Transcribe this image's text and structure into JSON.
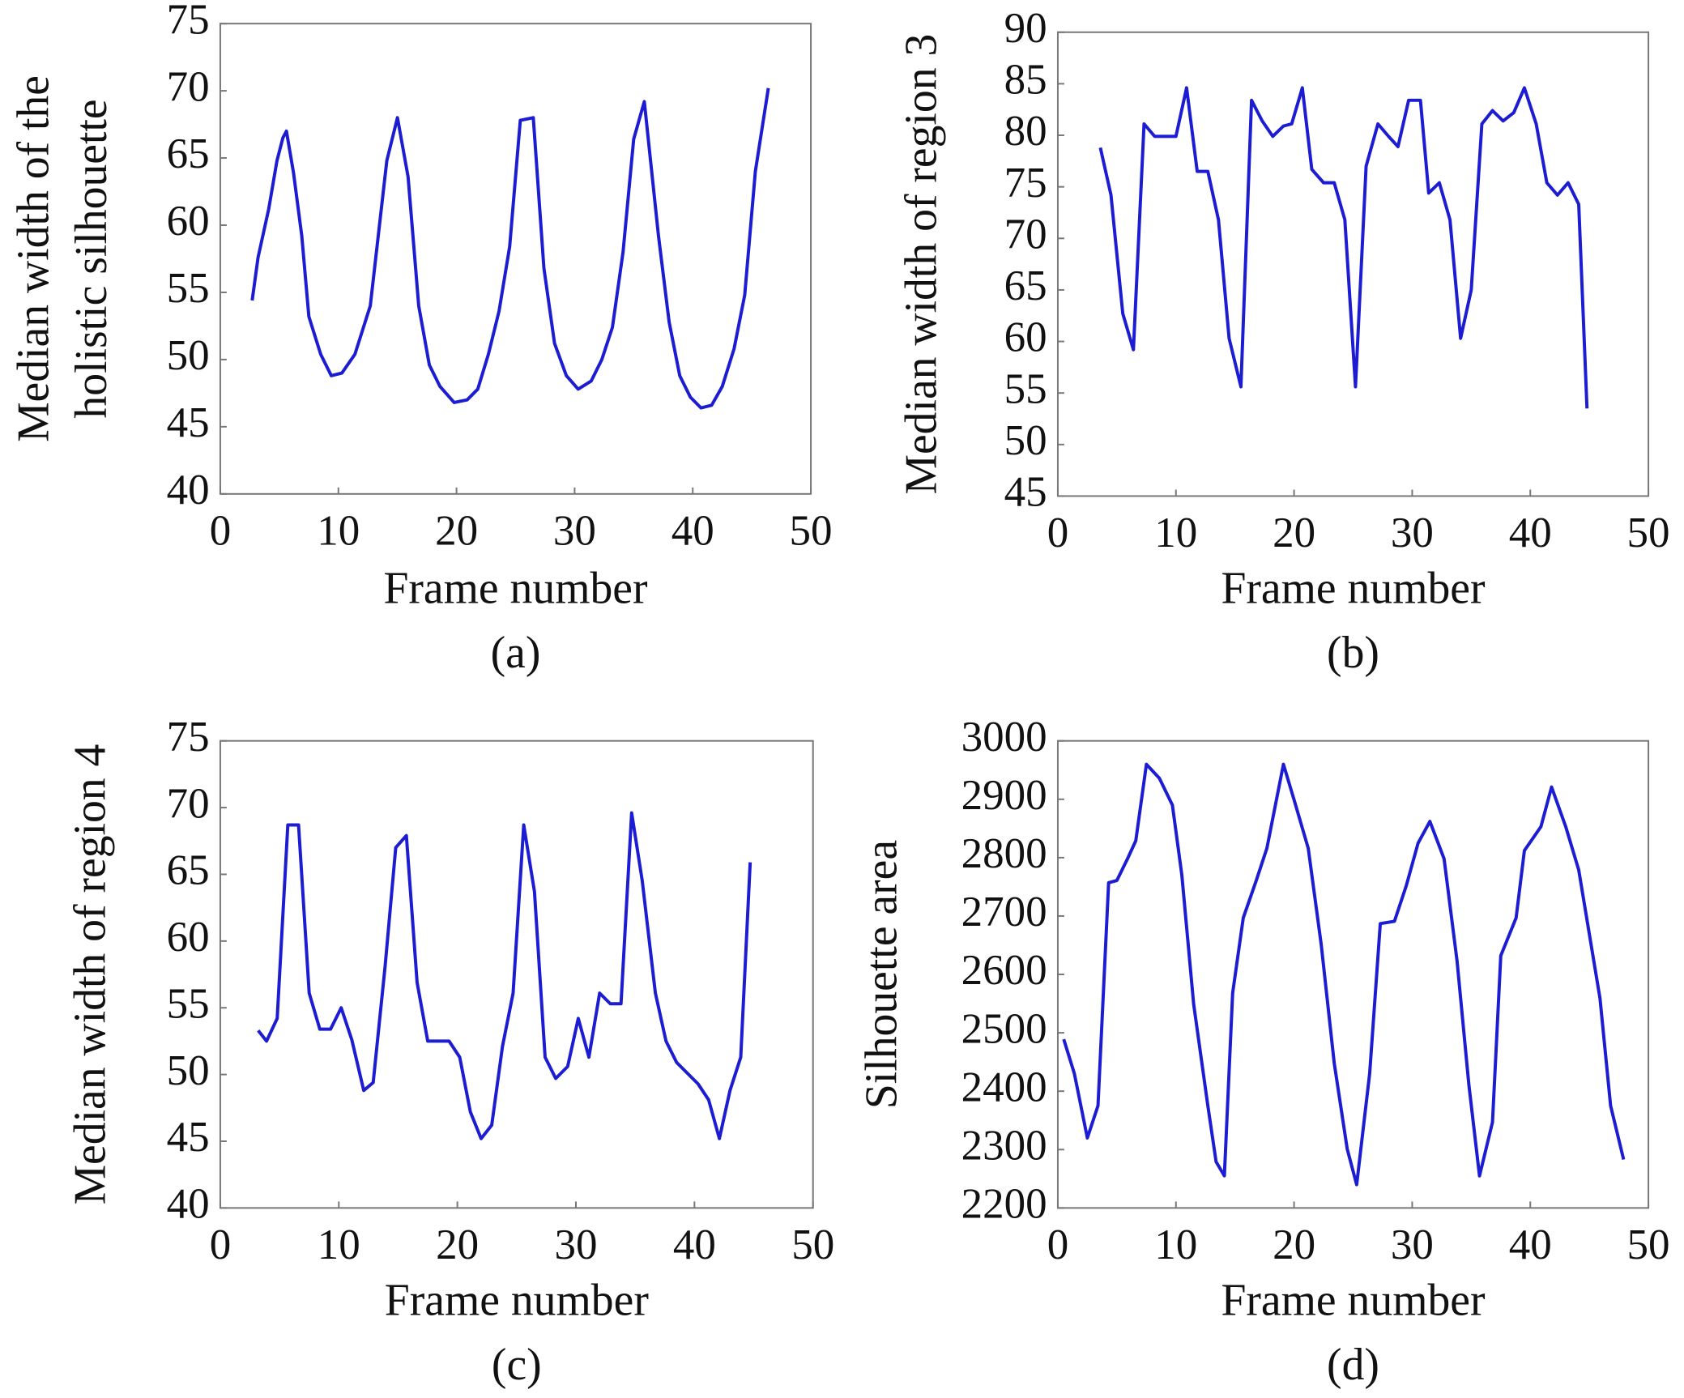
{
  "chart_data": [
    {
      "type": "line",
      "caption": "(a)",
      "xlabel": "Frame number",
      "ylabel": [
        "Median width of the",
        "holistic silhouette"
      ],
      "color": "#1c1cd2",
      "xlim": [
        0,
        50
      ],
      "ylim": [
        40,
        75
      ],
      "xticks": [
        0,
        10,
        20,
        30,
        40,
        50
      ],
      "yticks": [
        40,
        45,
        50,
        55,
        60,
        65,
        70,
        75
      ],
      "x": [
        2.7,
        3.2,
        4.1,
        4.8,
        5.3,
        5.6,
        6.2,
        6.9,
        7.5,
        8.5,
        9.4,
        10.3,
        11.4,
        12.7,
        14.1,
        15,
        15.9,
        16.8,
        17.7,
        18.6,
        19.8,
        20.9,
        21.8,
        22.7,
        23.6,
        24.5,
        25.4,
        26.5,
        27.4,
        28.3,
        29.3,
        30.3,
        31.4,
        32.3,
        33.2,
        34.1,
        35,
        35.9,
        37.1,
        38,
        38.9,
        39.8,
        40.7,
        41.6,
        42.5,
        43.5,
        44.4,
        45.3,
        46.4
      ],
      "values": [
        54.4,
        57.6,
        61.2,
        64.8,
        66.5,
        67,
        63.9,
        59.2,
        53.2,
        50.4,
        48.8,
        49,
        50.4,
        54,
        64.8,
        68,
        63.6,
        54,
        49.6,
        48,
        46.8,
        47,
        47.8,
        50.4,
        53.6,
        58.4,
        67.8,
        68,
        56.8,
        51.2,
        48.8,
        47.8,
        48.4,
        50,
        52.4,
        58,
        66.4,
        69.2,
        59.2,
        52.8,
        48.8,
        47.2,
        46.4,
        46.6,
        48,
        50.8,
        54.8,
        64,
        70.2
      ]
    },
    {
      "type": "line",
      "caption": "(b)",
      "xlabel": "Frame number",
      "ylabel": [
        "Median width of region 3"
      ],
      "color": "#1c1cd2",
      "xlim": [
        0,
        50
      ],
      "ylim": [
        45,
        90
      ],
      "xticks": [
        0,
        10,
        20,
        30,
        40,
        50
      ],
      "yticks": [
        45,
        50,
        55,
        60,
        65,
        70,
        75,
        80,
        85,
        90
      ],
      "x": [
        3.6,
        4.5,
        5.5,
        6.4,
        7.3,
        8.2,
        10,
        10.9,
        11.8,
        12.7,
        13.6,
        14.5,
        15.5,
        16.4,
        17.3,
        18.2,
        19.1,
        19.8,
        20.7,
        21.5,
        22.5,
        23.4,
        24.3,
        25.2,
        26.1,
        27.1,
        28,
        28.8,
        29.7,
        30.7,
        31.4,
        32.3,
        33.2,
        34.1,
        35,
        35.9,
        36.8,
        37.7,
        38.6,
        39.5,
        40.5,
        41.4,
        42.3,
        43.2,
        44.1,
        44.8
      ],
      "values": [
        78.8,
        74.2,
        62.7,
        59.2,
        81.1,
        79.9,
        79.9,
        84.6,
        76.5,
        76.5,
        71.8,
        60.3,
        55.6,
        83.4,
        81.4,
        79.9,
        80.9,
        81.1,
        84.6,
        76.7,
        75.4,
        75.4,
        71.8,
        55.6,
        77,
        81.1,
        79.9,
        78.9,
        83.4,
        83.4,
        74.4,
        75.4,
        71.8,
        60.3,
        65,
        81.1,
        82.4,
        81.4,
        82.2,
        84.6,
        81.1,
        75.4,
        74.2,
        75.4,
        73.3,
        53.5
      ]
    },
    {
      "type": "line",
      "caption": "(c)",
      "xlabel": "Frame number",
      "ylabel": [
        "Median width of region 4"
      ],
      "color": "#1c1cd2",
      "xlim": [
        0,
        50
      ],
      "ylim": [
        40,
        75
      ],
      "xticks": [
        0,
        10,
        20,
        30,
        40,
        50
      ],
      "yticks": [
        40,
        45,
        50,
        55,
        60,
        65,
        70,
        75
      ],
      "x": [
        3.2,
        3.9,
        4.8,
        5.7,
        6.6,
        7.5,
        8.4,
        9.3,
        10.2,
        11.1,
        12.1,
        12.9,
        13.9,
        14.8,
        15.7,
        16.6,
        17.5,
        19.3,
        20.2,
        21.1,
        22,
        22.9,
        23.8,
        24.7,
        25.6,
        26.5,
        27.4,
        28.3,
        29.3,
        30.2,
        31.1,
        32,
        32.9,
        33.8,
        34.7,
        35.6,
        36.7,
        37.6,
        38.5,
        39.4,
        40.3,
        41.2,
        42.1,
        43,
        43.9,
        44.7
      ],
      "values": [
        53.3,
        52.5,
        54.2,
        68.7,
        68.7,
        56.1,
        53.4,
        53.4,
        55,
        52.6,
        48.8,
        49.4,
        58.1,
        67,
        67.9,
        56.9,
        52.5,
        52.5,
        51.3,
        47.2,
        45.2,
        46.2,
        52.1,
        56.1,
        68.7,
        63.7,
        51.3,
        49.7,
        50.6,
        54.2,
        51.3,
        56.1,
        55.3,
        55.3,
        69.6,
        64.5,
        56.1,
        52.5,
        50.9,
        50.1,
        49.3,
        48.1,
        45.2,
        48.8,
        51.3,
        65.9
      ]
    },
    {
      "type": "line",
      "caption": "(d)",
      "xlabel": "Frame number",
      "ylabel": [
        "Silhouette area"
      ],
      "color": "#1c1cd2",
      "xlim": [
        0,
        50
      ],
      "ylim": [
        2200,
        3000
      ],
      "xticks": [
        0,
        10,
        20,
        30,
        40,
        50
      ],
      "yticks": [
        2200,
        2300,
        2400,
        2500,
        2600,
        2700,
        2800,
        2900,
        3000
      ],
      "x": [
        0.5,
        1.4,
        2.5,
        3.4,
        4.3,
        5,
        5.9,
        6.6,
        7.5,
        8.6,
        9.7,
        10.5,
        11.5,
        12.7,
        13.4,
        14.1,
        14.8,
        15.7,
        16.8,
        17.7,
        19.1,
        20,
        21.2,
        22.3,
        23.4,
        24.5,
        25.3,
        26.4,
        27.3,
        28.5,
        29.5,
        30.5,
        31.5,
        32.7,
        33.8,
        34.8,
        35.7,
        36.8,
        37.5,
        38.8,
        39.5,
        40.9,
        41.8,
        43,
        44.1,
        45,
        45.9,
        46.8,
        47.9
      ],
      "values": [
        2489,
        2430,
        2320,
        2375,
        2757,
        2761,
        2798,
        2829,
        2960,
        2936,
        2890,
        2770,
        2549,
        2375,
        2279,
        2255,
        2568,
        2697,
        2761,
        2816,
        2960,
        2899,
        2816,
        2651,
        2448,
        2301,
        2240,
        2430,
        2687,
        2691,
        2752,
        2825,
        2862,
        2798,
        2623,
        2411,
        2255,
        2347,
        2632,
        2697,
        2812,
        2853,
        2921,
        2853,
        2779,
        2669,
        2559,
        2375,
        2283
      ]
    }
  ]
}
